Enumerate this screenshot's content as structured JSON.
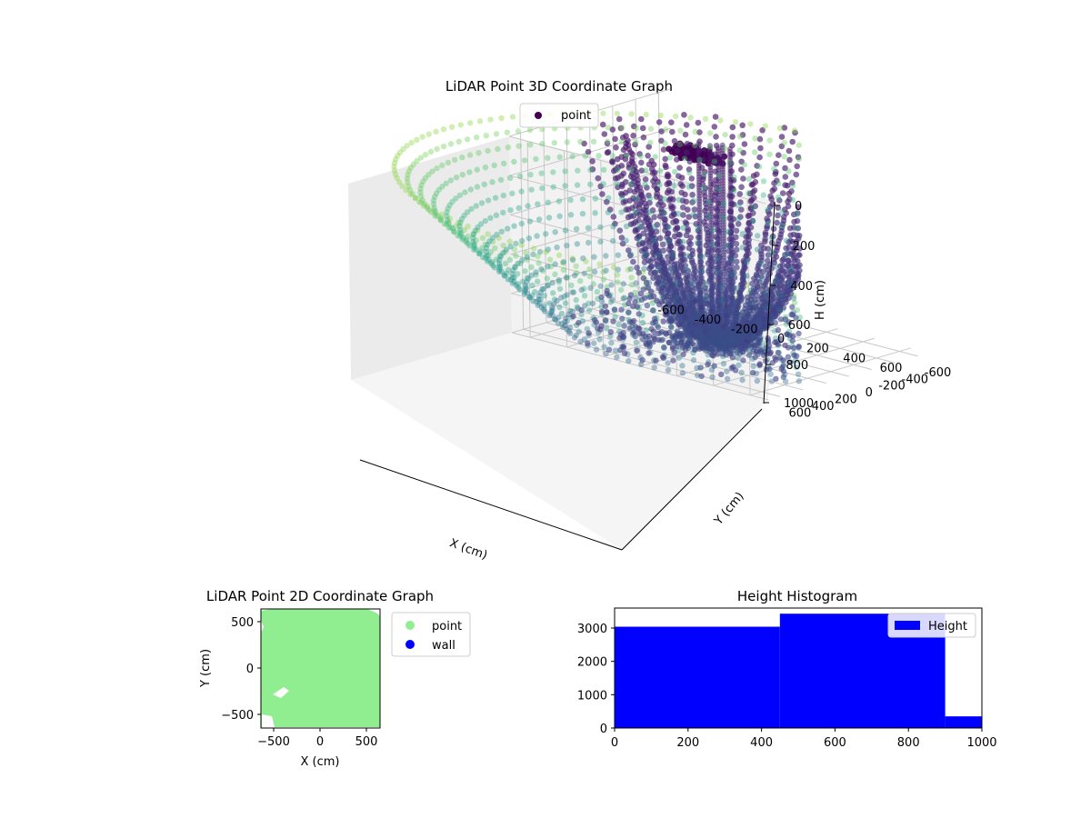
{
  "figure": {
    "charts": [
      "3d-scatter",
      "2d-scatter",
      "histogram"
    ]
  },
  "chart_data": [
    {
      "type": "scatter",
      "projection": "3d",
      "title": "LiDAR Point 3D Coordinate Graph",
      "xlabel": "X (cm)",
      "ylabel": "Y (cm)",
      "zlabel": "H (cm)",
      "xlim": [
        -700,
        700
      ],
      "ylim": [
        -700,
        700
      ],
      "zlim": [
        0,
        1000
      ],
      "z_inverted": true,
      "x_ticks": [
        "-600",
        "-400",
        "-200",
        "0",
        "200",
        "400",
        "600"
      ],
      "y_ticks": [
        "-600",
        "-400",
        "-200",
        "0",
        "200",
        "400",
        "600"
      ],
      "z_ticks": [
        "0",
        "200",
        "400",
        "600",
        "800",
        "1000"
      ],
      "colormap": "viridis",
      "legend": [
        {
          "name": "point",
          "color": "#440154"
        }
      ],
      "legend_position": "upper center",
      "grid": true
    },
    {
      "type": "scatter",
      "title": "LiDAR Point 2D Coordinate Graph",
      "xlabel": "X (cm)",
      "ylabel": "Y (cm)",
      "xlim": [
        -650,
        650
      ],
      "ylim": [
        -650,
        650
      ],
      "x_ticks": [
        "−500",
        "0",
        "500"
      ],
      "y_ticks": [
        "500",
        "0",
        "−500"
      ],
      "series": [
        {
          "name": "point",
          "color": "#90ee90"
        },
        {
          "name": "wall",
          "color": "#0000ff"
        }
      ],
      "legend_position": "outside upper right"
    },
    {
      "type": "bar",
      "title": "Height Histogram",
      "xlim": [
        0,
        1000
      ],
      "ylim": [
        0,
        3600
      ],
      "x_ticks": [
        "0",
        "200",
        "400",
        "600",
        "800",
        "1000"
      ],
      "y_ticks": [
        "0",
        "1000",
        "2000",
        "3000"
      ],
      "bins": [
        {
          "from": 0,
          "to": 450,
          "count": 3040
        },
        {
          "from": 450,
          "to": 900,
          "count": 3430
        },
        {
          "from": 900,
          "to": 1000,
          "count": 350
        }
      ],
      "series": [
        {
          "name": "Height",
          "color": "#0000ff"
        }
      ],
      "legend_position": "upper right"
    }
  ]
}
